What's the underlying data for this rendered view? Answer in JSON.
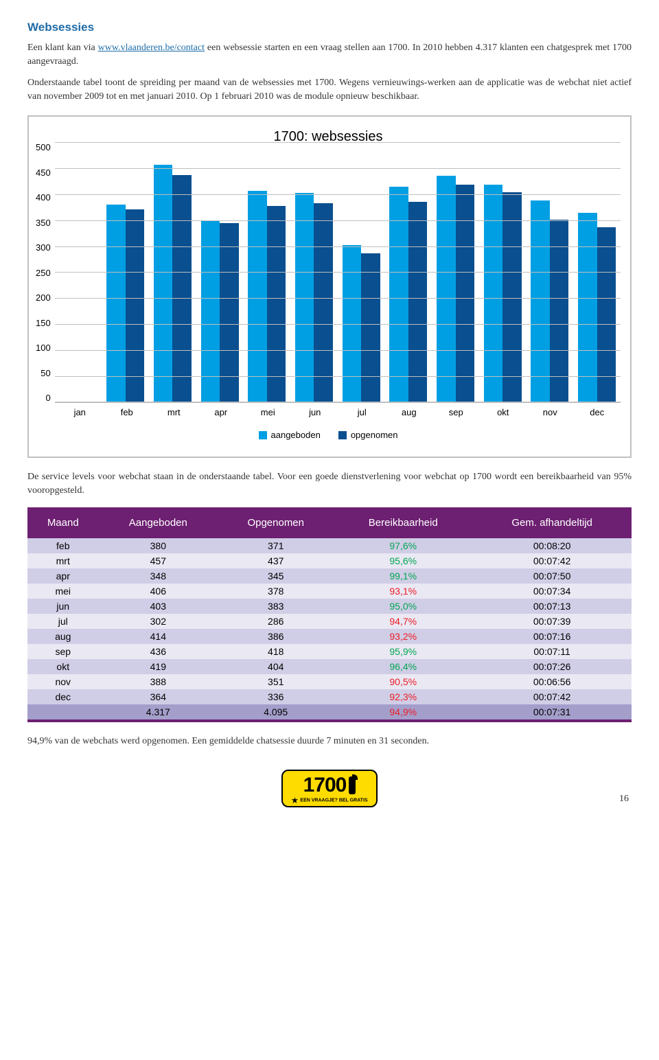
{
  "section_title": "Websessies",
  "paragraph1_pre": "Een klant kan via ",
  "paragraph1_link": "www.vlaanderen.be/contact",
  "paragraph1_post": " een websessie starten en een vraag stellen aan 1700. In 2010 hebben 4.317 klanten een chatgesprek met 1700 aangevraagd.",
  "paragraph2": "Onderstaande tabel toont de spreiding per maand van de websessies met 1700. Wegens vernieuwings-werken aan de applicatie was de webchat niet actief van november 2009 tot en met januari 2010. Op 1 februari 2010 was de module opnieuw beschikbaar.",
  "chart": {
    "title": "1700: websessies",
    "ymax": 500,
    "ytick_step": 50,
    "yticks": [
      "500",
      "450",
      "400",
      "350",
      "300",
      "250",
      "200",
      "150",
      "100",
      "50",
      "0"
    ],
    "categories": [
      "jan",
      "feb",
      "mrt",
      "apr",
      "mei",
      "jun",
      "jul",
      "aug",
      "sep",
      "okt",
      "nov",
      "dec"
    ],
    "series": [
      {
        "name": "aangeboden",
        "color": "#009fe3",
        "values": [
          0,
          380,
          457,
          348,
          406,
          403,
          302,
          414,
          436,
          419,
          388,
          364
        ]
      },
      {
        "name": "opgenomen",
        "color": "#0a4f8f",
        "values": [
          0,
          371,
          437,
          345,
          378,
          383,
          286,
          386,
          418,
          404,
          351,
          336
        ]
      }
    ],
    "grid_color": "#bfbfbf",
    "background_color": "#ffffff"
  },
  "paragraph3": "De service levels voor webchat staan in de onderstaande tabel. Voor een goede dienstverlening voor webchat op 1700 wordt een bereikbaarheid van 95% vooropgesteld.",
  "table": {
    "header_bg": "#6d1f71",
    "header_color": "#ffffff",
    "row_alt_a": "#d0cde6",
    "row_alt_b": "#eae8f3",
    "total_bg": "#a49ecb",
    "reach_threshold": 95,
    "reach_ok_color": "#00a651",
    "reach_bad_color": "#ed1c24",
    "columns": [
      "Maand",
      "Aangeboden",
      "Opgenomen",
      "Bereikbaarheid",
      "Gem. afhandeltijd"
    ],
    "rows": [
      [
        "feb",
        "380",
        "371",
        "97,6%",
        "00:08:20"
      ],
      [
        "mrt",
        "457",
        "437",
        "95,6%",
        "00:07:42"
      ],
      [
        "apr",
        "348",
        "345",
        "99,1%",
        "00:07:50"
      ],
      [
        "mei",
        "406",
        "378",
        "93,1%",
        "00:07:34"
      ],
      [
        "jun",
        "403",
        "383",
        "95,0%",
        "00:07:13"
      ],
      [
        "jul",
        "302",
        "286",
        "94,7%",
        "00:07:39"
      ],
      [
        "aug",
        "414",
        "386",
        "93,2%",
        "00:07:16"
      ],
      [
        "sep",
        "436",
        "418",
        "95,9%",
        "00:07:11"
      ],
      [
        "okt",
        "419",
        "404",
        "96,4%",
        "00:07:26"
      ],
      [
        "nov",
        "388",
        "351",
        "90,5%",
        "00:06:56"
      ],
      [
        "dec",
        "364",
        "336",
        "92,3%",
        "00:07:42"
      ]
    ],
    "total": [
      "",
      "4.317",
      "4.095",
      "94,9%",
      "00:07:31"
    ]
  },
  "paragraph4": "94,9% van de webchats werd opgenomen. Een gemiddelde chatsessie duurde 7 minuten en 31 seconden.",
  "logo": {
    "number": "1700",
    "tagline": "EEN VRAAGJE? BEL GRATIS"
  },
  "page_number": "16"
}
